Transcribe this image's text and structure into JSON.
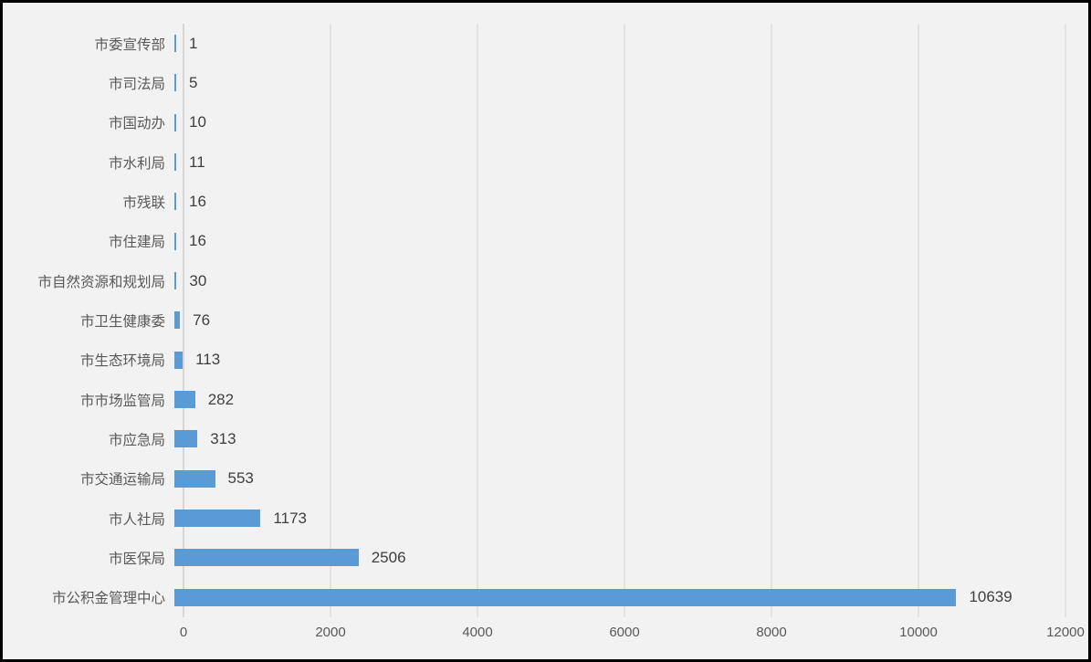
{
  "chart_data": {
    "type": "bar",
    "orientation": "horizontal",
    "title": "",
    "xlabel": "",
    "ylabel": "",
    "categories": [
      "市委宣传部",
      "市司法局",
      "市国动办",
      "市水利局",
      "市残联",
      "市住建局",
      "市自然资源和规划局",
      "市卫生健康委",
      "市生态环境局",
      "市市场监管局",
      "市应急局",
      "市交通运输局",
      "市人社局",
      "市医保局",
      "市公积金管理中心"
    ],
    "values": [
      1,
      5,
      10,
      11,
      16,
      16,
      30,
      76,
      113,
      282,
      313,
      553,
      1173,
      2506,
      10639
    ],
    "data_labels": [
      "1",
      "5",
      "10",
      "11",
      "16",
      "16",
      "30",
      "76",
      "113",
      "282",
      "313",
      "553",
      "1173",
      "2506",
      "10639"
    ],
    "x_ticks": [
      "0",
      "2000",
      "4000",
      "6000",
      "8000",
      "10000",
      "12000"
    ],
    "xlim": [
      0,
      12000
    ],
    "grid": true,
    "legend": false,
    "bar_color": "#5b9bd5",
    "background_color": "#f2f2f2",
    "gridline_color": "#e3e3e3",
    "axis_line_color": "#d6d6d6",
    "category_label_color": "#595959",
    "value_label_color": "#3f3f3f",
    "tick_label_color": "#595959"
  }
}
